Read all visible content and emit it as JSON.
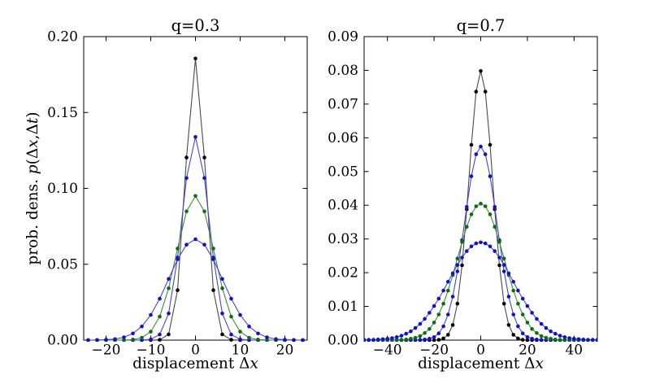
{
  "figure": {
    "background": "#ffffff",
    "text_color": "#000000",
    "frame_color": "#000000"
  },
  "chart_data": [
    {
      "type": "line",
      "title": "q=0.3",
      "xlabel": "displacement Δx",
      "xlabel_segments": [
        {
          "t": "displacement Δ",
          "i": false
        },
        {
          "t": "x",
          "i": true
        }
      ],
      "ylabel": "prob. dens. p(Δx,Δt)",
      "ylabel_segments": [
        {
          "t": "prob. dens. ",
          "i": false
        },
        {
          "t": "p",
          "i": true
        },
        {
          "t": "(Δ",
          "i": false
        },
        {
          "t": "x",
          "i": true
        },
        {
          "t": ",Δ",
          "i": false
        },
        {
          "t": "t",
          "i": true
        },
        {
          "t": ")",
          "i": false
        }
      ],
      "xlim": [
        -25,
        25
      ],
      "ylim": [
        0,
        0.2
      ],
      "grid": false,
      "legend": null,
      "xticks": [
        -20,
        -10,
        0,
        10,
        20
      ],
      "xtick_labels": [
        "−20",
        "−10",
        "0",
        "10",
        "20"
      ],
      "yticks": [
        0,
        0.05,
        0.1,
        0.15,
        0.2
      ],
      "ytick_labels": [
        "0.00",
        "0.05",
        "0.10",
        "0.15",
        "0.20"
      ],
      "marker": "circle",
      "series": [
        {
          "name": "narrowest-peak",
          "color_name": "black",
          "marker_color": "#000000",
          "line_color": "#4a4a4a",
          "symmetric": true,
          "x_step": 2,
          "values_from_x0": [
            0.1856,
            0.1203,
            0.0329,
            0.0038,
            0.0002,
            0,
            0,
            0,
            0,
            0,
            0,
            0,
            0
          ]
        },
        {
          "name": "second-peak",
          "color_name": "blue",
          "marker_color": "#1212c8",
          "line_color": "#4646d8",
          "symmetric": true,
          "x_step": 2,
          "values_from_x0": [
            0.1339,
            0.1068,
            0.0544,
            0.0176,
            0.0037,
            0.0005,
            0.0001,
            0,
            0,
            0,
            0,
            0,
            0
          ]
        },
        {
          "name": "third-peak",
          "color_name": "green",
          "marker_color": "#0c6e0c",
          "line_color": "#3d8e3d",
          "symmetric": true,
          "x_step": 2,
          "values_from_x0": [
            0.095,
            0.0848,
            0.0604,
            0.0342,
            0.0155,
            0.0056,
            0.0016,
            0.0004,
            0.0001,
            0,
            0,
            0,
            0
          ]
        },
        {
          "name": "widest-peak",
          "color_name": "blue",
          "marker_color": "#1212c8",
          "line_color": "#4646d8",
          "symmetric": true,
          "x_step": 2,
          "values_from_x0": [
            0.0665,
            0.0629,
            0.0533,
            0.0403,
            0.0273,
            0.0166,
            0.009,
            0.0044,
            0.0019,
            0.0007,
            0.0003,
            0.0001,
            0
          ]
        }
      ]
    },
    {
      "type": "line",
      "title": "q=0.7",
      "xlabel": "displacement Δx",
      "xlabel_segments": [
        {
          "t": "displacement Δ",
          "i": false
        },
        {
          "t": "x",
          "i": true
        }
      ],
      "ylabel": null,
      "xlim": [
        -50,
        50
      ],
      "ylim": [
        0,
        0.09
      ],
      "grid": false,
      "legend": null,
      "xticks": [
        -40,
        -20,
        0,
        20,
        40
      ],
      "xtick_labels": [
        "−40",
        "−20",
        "0",
        "20",
        "40"
      ],
      "yticks": [
        0,
        0.01,
        0.02,
        0.03,
        0.04,
        0.05,
        0.06,
        0.07,
        0.08,
        0.09
      ],
      "ytick_labels": [
        "0.00",
        "0.01",
        "0.02",
        "0.03",
        "0.04",
        "0.05",
        "0.06",
        "0.07",
        "0.08",
        "0.09"
      ],
      "marker": "circle",
      "series": [
        {
          "name": "narrowest-peak",
          "color_name": "black",
          "marker_color": "#000000",
          "line_color": "#4a4a4a",
          "symmetric": true,
          "x_step": 2,
          "values_from_x0": [
            0.0798,
            0.0737,
            0.0579,
            0.0388,
            0.0222,
            0.0108,
            0.0045,
            0.0016,
            0.0005,
            0.0001,
            0,
            0,
            0,
            0,
            0,
            0,
            0,
            0,
            0,
            0,
            0,
            0,
            0,
            0,
            0,
            0
          ]
        },
        {
          "name": "second-peak",
          "color_name": "blue",
          "marker_color": "#1212c8",
          "line_color": "#4646d8",
          "symmetric": true,
          "x_step": 2,
          "values_from_x0": [
            0.0574,
            0.0551,
            0.0486,
            0.0395,
            0.0296,
            0.0204,
            0.0129,
            0.0076,
            0.0041,
            0.002,
            0.0009,
            0.0004,
            0.0002,
            0.0001,
            0,
            0,
            0,
            0,
            0,
            0,
            0,
            0,
            0,
            0,
            0,
            0
          ]
        },
        {
          "name": "third-peak",
          "color_name": "green",
          "marker_color": "#0c6e0c",
          "line_color": "#3d8e3d",
          "symmetric": true,
          "x_step": 2,
          "values_from_x0": [
            0.0405,
            0.0397,
            0.0373,
            0.0336,
            0.0291,
            0.0242,
            0.0193,
            0.0147,
            0.0108,
            0.0076,
            0.0052,
            0.0033,
            0.0021,
            0.0012,
            0.0007,
            0.0004,
            0.0002,
            0.0001,
            0.0001,
            0,
            0,
            0,
            0,
            0,
            0,
            0
          ]
        },
        {
          "name": "widest-peak",
          "color_name": "blue",
          "marker_color": "#1212c8",
          "line_color": "#4646d8",
          "symmetric": true,
          "x_step": 2,
          "values_from_x0": [
            0.029,
            0.0287,
            0.0278,
            0.0264,
            0.0245,
            0.0223,
            0.0198,
            0.0173,
            0.0147,
            0.0123,
            0.0101,
            0.0081,
            0.0063,
            0.0048,
            0.0036,
            0.0026,
            0.0019,
            0.0013,
            0.0009,
            0.0006,
            0.0004,
            0.0003,
            0.0002,
            0.0001,
            0.0001,
            0.0001
          ]
        }
      ]
    }
  ]
}
